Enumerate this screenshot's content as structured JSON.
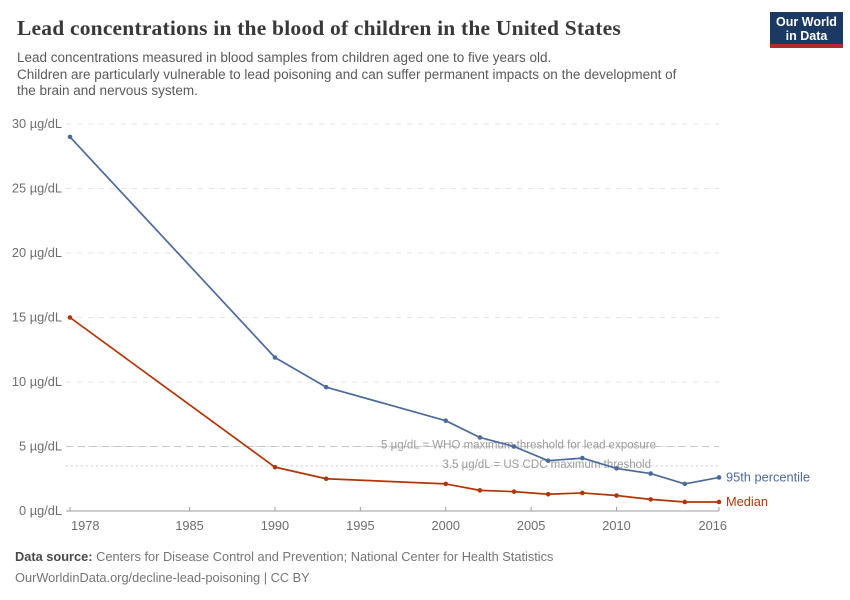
{
  "header": {
    "title": "Lead concentrations in the blood of children in the United States",
    "subtitle_lines": [
      "Lead concentrations measured in blood samples from children aged one to five years old.",
      "Children are particularly vulnerable to lead poisoning and can suffer permanent impacts on the development of",
      "the brain and nervous system."
    ],
    "logo": {
      "line1": "Our World",
      "line2": "in Data",
      "bg_color": "#1A3A64",
      "stripe_color": "#B7272E"
    }
  },
  "chart_data": {
    "type": "line",
    "title": "Lead concentrations in the blood of children in the United States",
    "xlabel": "",
    "ylabel": "µg/dL",
    "x": [
      1978,
      1990,
      1993,
      2000,
      2002,
      2004,
      2006,
      2008,
      2010,
      2012,
      2014,
      2016
    ],
    "series": [
      {
        "name": "95th percentile",
        "color": "#4C6A9C",
        "values": [
          29,
          11.9,
          9.6,
          7.0,
          5.7,
          5.0,
          3.9,
          4.1,
          3.3,
          2.9,
          2.1,
          2.6
        ]
      },
      {
        "name": "Median",
        "color": "#B13507",
        "values": [
          15,
          3.4,
          2.5,
          2.1,
          1.6,
          1.5,
          1.3,
          1.4,
          1.2,
          0.9,
          0.7,
          0.7
        ]
      }
    ],
    "xlim": [
      1978,
      2016
    ],
    "ylim": [
      0,
      30
    ],
    "xticks": [
      1978,
      1985,
      1990,
      1995,
      2000,
      2005,
      2010,
      2016
    ],
    "yticks": [
      0,
      5,
      10,
      15,
      20,
      25,
      30
    ],
    "ytick_suffix": " µg/dL",
    "grid": "horizontal-dashed",
    "legend_position": "line-end-labels",
    "annotations": [
      {
        "text": "5 µg/dL = WHO maximum threshold for lead exposure",
        "y": 5,
        "line_style": "dashed"
      },
      {
        "text": "3.5 µg/dL = US CDC maximum threshold",
        "y": 3.5,
        "line_style": "dotted"
      }
    ]
  },
  "footer": {
    "source_label": "Data source:",
    "source_text": " Centers for Disease Control and Prevention; National Center for Health Statistics",
    "link_line": "OurWorldinData.org/decline-lead-poisoning | CC BY"
  }
}
